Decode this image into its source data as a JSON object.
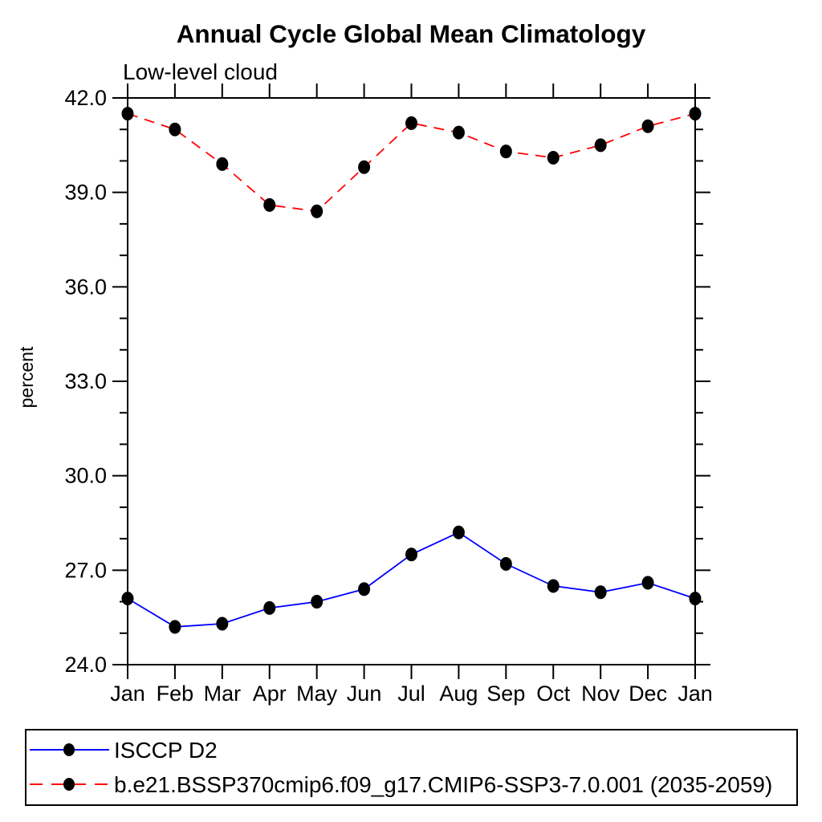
{
  "page": {
    "background_color": "#ffffff",
    "text_color": "#000000"
  },
  "chart_data": {
    "type": "line",
    "title": "Annual Cycle Global Mean Climatology",
    "subtitle": "Low-level cloud",
    "xlabel": "",
    "ylabel": "percent",
    "x": [
      "Jan",
      "Feb",
      "Mar",
      "Apr",
      "May",
      "Jun",
      "Jul",
      "Aug",
      "Sep",
      "Oct",
      "Nov",
      "Dec",
      "Jan"
    ],
    "series": [
      {
        "name": "ISCCP D2",
        "color": "#0000ff",
        "line_style": "solid",
        "marker": "filled-circle",
        "marker_color": "#000000",
        "values": [
          26.1,
          25.2,
          25.3,
          25.8,
          26.0,
          26.4,
          27.5,
          28.2,
          27.2,
          26.5,
          26.3,
          26.6,
          26.1
        ]
      },
      {
        "name": "b.e21.BSSP370cmip6.f09_g17.CMIP6-SSP3-7.0.001 (2035-2059)",
        "color": "#ff0000",
        "line_style": "dashed",
        "marker": "filled-circle",
        "marker_color": "#000000",
        "values": [
          41.5,
          41.0,
          39.9,
          38.6,
          38.4,
          39.8,
          41.2,
          40.9,
          40.3,
          40.1,
          40.5,
          41.1,
          41.5
        ]
      }
    ],
    "ylim": [
      24.0,
      42.0
    ],
    "yticks_major": [
      24.0,
      27.0,
      30.0,
      33.0,
      36.0,
      39.0,
      42.0
    ],
    "ytick_labels": [
      "24.0",
      "27.0",
      "30.0",
      "33.0",
      "36.0",
      "39.0",
      "42.0"
    ],
    "yticks_minor_step": 1.0,
    "grid": false,
    "frame": "box-with-outward-ticks",
    "legend_position": "bottom"
  }
}
